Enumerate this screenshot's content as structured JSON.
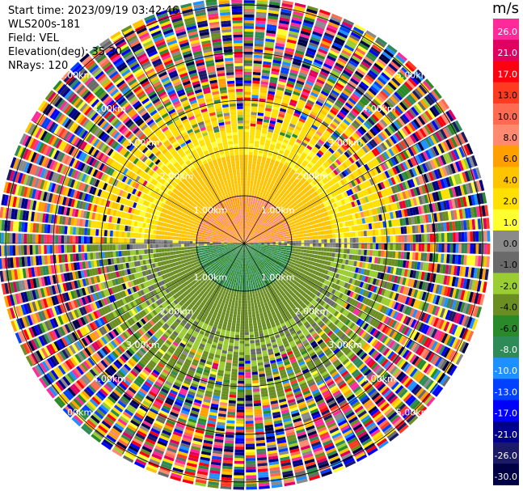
{
  "header": {
    "start_time": "Start time: 2023/09/19 03:42:46",
    "instrument": "WLS200s-181",
    "field": "Field: VEL",
    "elevation": "Elevation(deg): 35.30",
    "nrays": "NRays: 120"
  },
  "colorbar": {
    "unit": "m/s",
    "ticks": [
      "26.0",
      "21.0",
      "17.0",
      "13.0",
      "10.0",
      "8.0",
      "6.0",
      "4.0",
      "2.0",
      "1.0",
      "0.0",
      "-1.0",
      "-2.0",
      "-4.0",
      "-6.0",
      "-8.0",
      "-10.0",
      "-13.0",
      "-17.0",
      "-21.0",
      "-26.0",
      "-30.0"
    ],
    "colors": [
      "#ff2a9a",
      "#e00060",
      "#ff0010",
      "#ff3a20",
      "#ff6a50",
      "#ff8a70",
      "#ffa000",
      "#ffc400",
      "#ffe000",
      "#ffff30",
      "#8a8a8a",
      "#6a6a6a",
      "#9acd32",
      "#6b8e23",
      "#2a8a2a",
      "#2e8b57",
      "#1e90ff",
      "#0040ff",
      "#0000ff",
      "#00008b",
      "#1a1a66",
      "#000044"
    ]
  },
  "chart_data": {
    "type": "ppi",
    "field": "VEL",
    "units": "m/s",
    "rays": 120,
    "range_rings_km": [
      1.0,
      2.0,
      3.0,
      4.0,
      5.0
    ],
    "ring_labels": [
      "1.00km",
      "2.00km",
      "3.00km",
      "4.00km",
      "5.00km"
    ],
    "spoke_angles_deg": [
      0,
      30,
      60,
      90,
      120,
      150,
      180,
      210,
      240,
      270,
      300,
      330
    ],
    "description_regions": [
      {
        "range_km": [
          0,
          1.0
        ],
        "north_value": 8.0,
        "south_value": -6.0
      },
      {
        "range_km": [
          1.0,
          2.5
        ],
        "north_value": 4.0,
        "south_value": -2.0
      },
      {
        "range_km": [
          2.5,
          5.2
        ],
        "north_value": 2.0,
        "south_value": -1.0
      }
    ],
    "vmin": -30.0,
    "vmax": 26.0
  }
}
